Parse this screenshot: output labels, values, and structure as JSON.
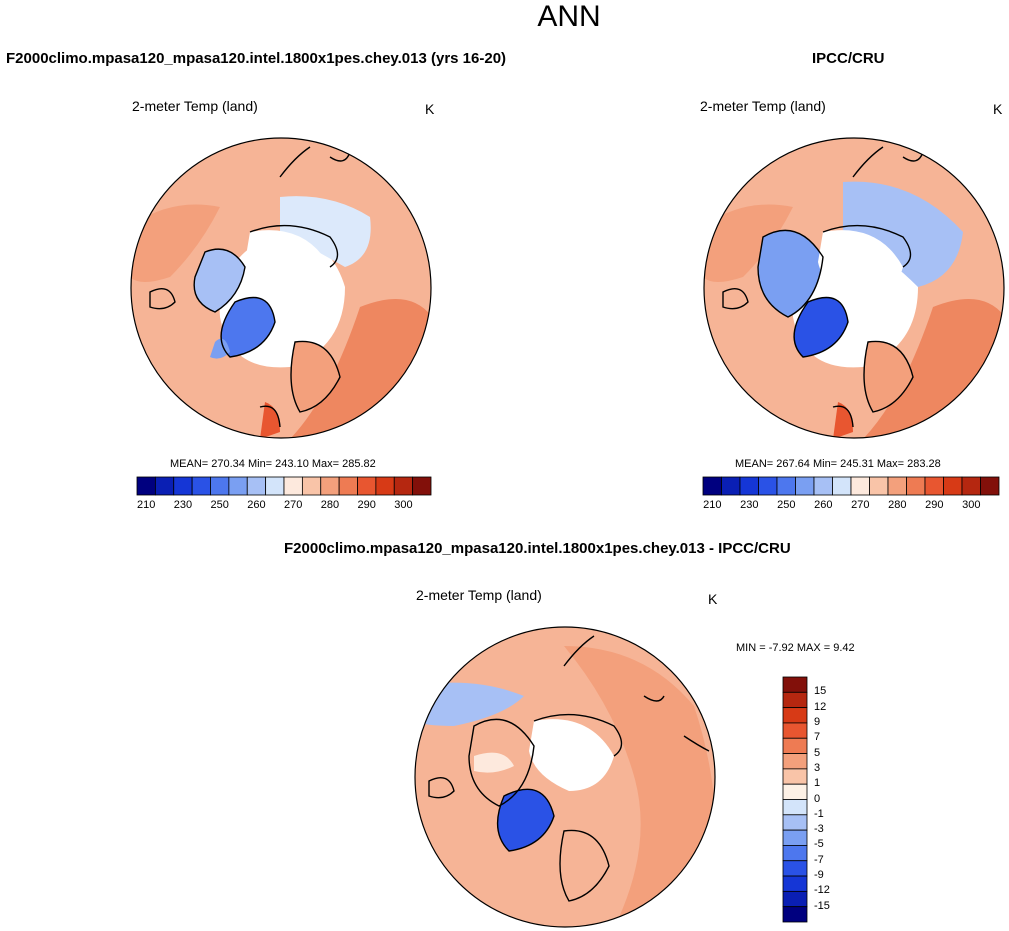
{
  "figure": {
    "title": "ANN"
  },
  "panels": [
    {
      "name": "model",
      "title": "F2000climo.mpasa120_mpasa120.intel.1800x1pes.chey.013 (yrs 16-20)",
      "variable": "2-meter Temp (land)",
      "units": "K",
      "stats": "MEAN= 270.34  Min= 243.10  Max= 285.82"
    },
    {
      "name": "obs",
      "title": "IPCC/CRU",
      "variable": "2-meter Temp (land)",
      "units": "K",
      "stats": "MEAN= 267.64  Min= 245.31  Max= 283.28"
    },
    {
      "name": "diff",
      "title": "F2000climo.mpasa120_mpasa120.intel.1800x1pes.chey.013 - IPCC/CRU",
      "variable": "2-meter Temp (land)",
      "units": "K",
      "stats": "MIN =  -7.92 MAX =   9.42"
    }
  ],
  "colorbar_abs": {
    "colors": [
      "#00007f",
      "#0a1fb4",
      "#1536d6",
      "#2a52e6",
      "#4d77ee",
      "#7a9ff2",
      "#a7c0f5",
      "#d3e4fa",
      "#fde9dd",
      "#f9c4a8",
      "#f3a07c",
      "#ee7b53",
      "#e85630",
      "#d73a16",
      "#b52710",
      "#82100a"
    ],
    "tick_labels": [
      "210",
      "230",
      "250",
      "260",
      "270",
      "280",
      "290",
      "300"
    ]
  },
  "colorbar_diff": {
    "colors": [
      "#00007f",
      "#0a1fb4",
      "#1536d6",
      "#2a52e6",
      "#4d77ee",
      "#7a9ff2",
      "#a7c0f5",
      "#d3e4fa",
      "#fdf1e6",
      "#f9c4a8",
      "#f3a07c",
      "#ee7b53",
      "#e85630",
      "#d73a16",
      "#b52710",
      "#82100a"
    ],
    "tick_labels": [
      "15",
      "12",
      "9",
      "7",
      "5",
      "3",
      "1",
      "0",
      "-1",
      "-3",
      "-5",
      "-7",
      "-9",
      "-12",
      "-15"
    ]
  }
}
